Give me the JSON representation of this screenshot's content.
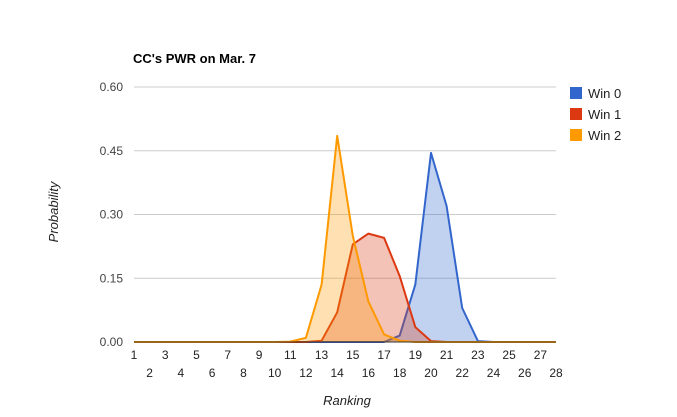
{
  "chart_data": {
    "type": "area",
    "title": "CC's PWR on Mar. 7",
    "xlabel": "Ranking",
    "ylabel": "Probability",
    "xlim": [
      1,
      28
    ],
    "ylim": [
      0,
      0.6
    ],
    "x_ticks": [
      1,
      2,
      3,
      4,
      5,
      6,
      7,
      8,
      9,
      10,
      11,
      12,
      13,
      14,
      15,
      16,
      17,
      18,
      19,
      20,
      21,
      22,
      23,
      24,
      25,
      26,
      27,
      28
    ],
    "x_tick_labels": [
      "1",
      "2",
      "3",
      "4",
      "5",
      "6",
      "7",
      "8",
      "9",
      "10",
      "11",
      "12",
      "13",
      "14",
      "15",
      "16",
      "17",
      "18",
      "19",
      "20",
      "21",
      "22",
      "23",
      "24",
      "25",
      "26",
      "27",
      "28"
    ],
    "y_ticks": [
      0,
      0.15,
      0.3,
      0.45,
      0.6
    ],
    "y_tick_labels": [
      "0.00",
      "0.15",
      "0.30",
      "0.45",
      "0.60"
    ],
    "grid": "horizontal",
    "legend_position": "right",
    "x": [
      1,
      2,
      3,
      4,
      5,
      6,
      7,
      8,
      9,
      10,
      11,
      12,
      13,
      14,
      15,
      16,
      17,
      18,
      19,
      20,
      21,
      22,
      23,
      24,
      25,
      26,
      27,
      28
    ],
    "series": [
      {
        "name": "Win 0",
        "color": "#3366cc",
        "values": [
          0,
          0,
          0,
          0,
          0,
          0,
          0,
          0,
          0,
          0,
          0,
          0,
          0,
          0,
          0,
          0,
          0,
          0.015,
          0.135,
          0.445,
          0.32,
          0.08,
          0.002,
          0,
          0,
          0,
          0,
          0
        ]
      },
      {
        "name": "Win 1",
        "color": "#dc3912",
        "values": [
          0,
          0,
          0,
          0,
          0,
          0,
          0,
          0,
          0,
          0,
          0,
          0,
          0.003,
          0.07,
          0.23,
          0.255,
          0.245,
          0.155,
          0.035,
          0.002,
          0,
          0,
          0,
          0,
          0,
          0,
          0,
          0
        ]
      },
      {
        "name": "Win 2",
        "color": "#ff9900",
        "values": [
          0,
          0,
          0,
          0,
          0,
          0,
          0,
          0,
          0,
          0,
          0.001,
          0.01,
          0.135,
          0.485,
          0.25,
          0.095,
          0.018,
          0.003,
          0,
          0,
          0,
          0,
          0,
          0,
          0,
          0,
          0,
          0
        ]
      }
    ]
  }
}
